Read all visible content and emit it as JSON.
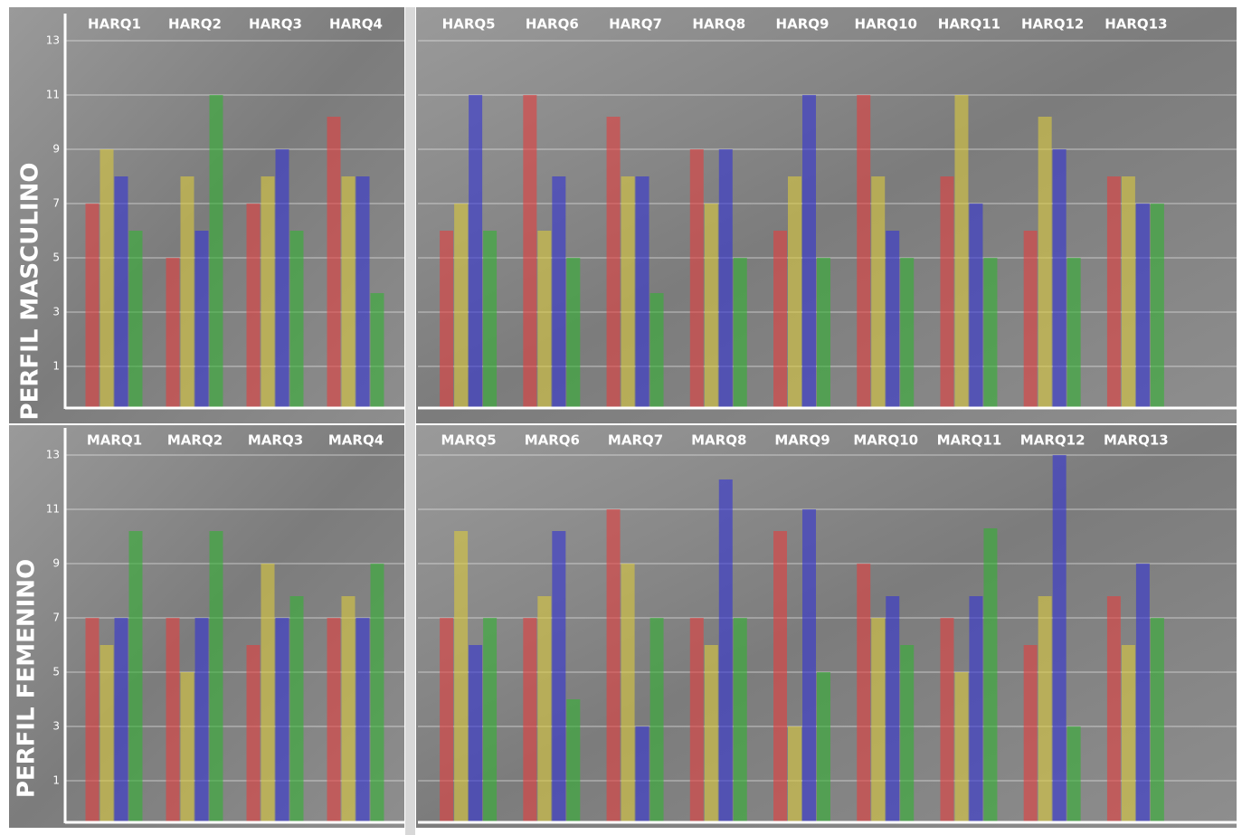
{
  "row_labels": [
    "PERFIL MASCULINO",
    "PERFIL FEMENINO"
  ],
  "chart_data": [
    {
      "type": "bar",
      "categories": [
        "HARQ1",
        "HARQ2",
        "HARQ3",
        "HARQ4"
      ],
      "series": [
        {
          "color": "#e04040",
          "values": [
            7,
            5,
            7,
            10.2
          ]
        },
        {
          "color": "#d8c840",
          "values": [
            9,
            8,
            8,
            8
          ]
        },
        {
          "color": "#3535d0",
          "values": [
            8,
            6,
            9,
            8
          ]
        },
        {
          "color": "#35b035",
          "values": [
            6,
            11,
            6,
            3.7
          ]
        }
      ],
      "ylim": [
        -0.5,
        14
      ],
      "yticks": [
        1,
        3,
        5,
        7,
        9,
        11,
        13
      ],
      "grid": true,
      "ytick_labels": true
    },
    {
      "type": "bar",
      "categories": [
        "HARQ5",
        "HARQ6",
        "HARQ7",
        "HARQ8",
        "HARQ9",
        "HARQ10",
        "HARQ11",
        "HARQ12",
        "HARQ13"
      ],
      "series": [
        {
          "color": "#e04040",
          "values": [
            6,
            11,
            10.2,
            9,
            6,
            11,
            8,
            6,
            8
          ]
        },
        {
          "color": "#d8c840",
          "values": [
            7,
            6,
            8,
            7,
            8,
            8,
            11,
            10.2,
            8
          ]
        },
        {
          "color": "#3535d0",
          "values": [
            11,
            8,
            8,
            9,
            11,
            6,
            7,
            9,
            7
          ]
        },
        {
          "color": "#35b035",
          "values": [
            6,
            5,
            3.7,
            5,
            5,
            5,
            5,
            5,
            7
          ]
        }
      ],
      "ylim": [
        -0.5,
        14
      ],
      "yticks": [
        1,
        3,
        5,
        7,
        9,
        11,
        13
      ],
      "grid": true,
      "ytick_labels": false
    },
    {
      "type": "bar",
      "categories": [
        "MARQ1",
        "MARQ2",
        "MARQ3",
        "MARQ4"
      ],
      "series": [
        {
          "color": "#e04040",
          "values": [
            7,
            7,
            6,
            7
          ]
        },
        {
          "color": "#d8c840",
          "values": [
            6,
            5,
            9,
            7.8
          ]
        },
        {
          "color": "#3535d0",
          "values": [
            7,
            7,
            7,
            7
          ]
        },
        {
          "color": "#35b035",
          "values": [
            10.2,
            10.2,
            7.8,
            9
          ]
        }
      ],
      "ylim": [
        -0.5,
        14
      ],
      "yticks": [
        1,
        3,
        5,
        7,
        9,
        11,
        13
      ],
      "grid": true,
      "ytick_labels": true
    },
    {
      "type": "bar",
      "categories": [
        "MARQ5",
        "MARQ6",
        "MARQ7",
        "MARQ8",
        "MARQ9",
        "MARQ10",
        "MARQ11",
        "MARQ12",
        "MARQ13"
      ],
      "series": [
        {
          "color": "#e04040",
          "values": [
            7,
            7,
            11,
            7,
            10.2,
            9,
            7,
            6,
            7.8
          ]
        },
        {
          "color": "#d8c840",
          "values": [
            10.2,
            7.8,
            9,
            6,
            3,
            7,
            5,
            7.8,
            6
          ]
        },
        {
          "color": "#3535d0",
          "values": [
            6,
            10.2,
            3,
            12.1,
            11,
            7.8,
            7.8,
            13,
            9
          ]
        },
        {
          "color": "#35b035",
          "values": [
            7,
            4,
            7,
            7,
            5,
            6,
            10.3,
            3,
            7
          ]
        }
      ],
      "ylim": [
        -0.5,
        14
      ],
      "yticks": [
        1,
        3,
        5,
        7,
        9,
        11,
        13
      ],
      "grid": true,
      "ytick_labels": false
    }
  ]
}
